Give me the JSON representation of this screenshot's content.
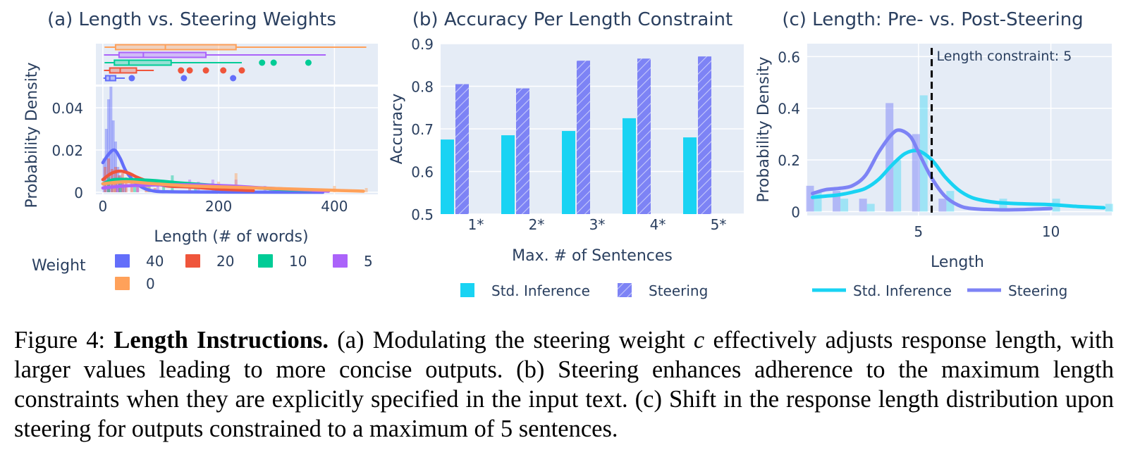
{
  "chart_data": [
    {
      "id": "a",
      "type": "histogram",
      "title": "(a) Length vs. Steering Weights",
      "xlabel": "Length (# of words)",
      "ylabel": "Probability Density",
      "xlim": [
        -12,
        475
      ],
      "ylim": [
        -0.001,
        0.05
      ],
      "xticks": [
        "0",
        "200",
        "400"
      ],
      "xtick_values": [
        0,
        200,
        400
      ],
      "yticks": [
        "0",
        "0.02",
        "0.04"
      ],
      "ytick_values": [
        0,
        0.02,
        0.04
      ],
      "legend_title": "Weight",
      "legend_position": "bottom",
      "series": [
        {
          "name": "40",
          "color": "#636efa",
          "box": {
            "min": 1,
            "q1": 5,
            "median": 12,
            "q3": 22,
            "max": 38,
            "outliers": [
              50,
              140,
              225
            ]
          },
          "hist": [
            [
              2,
              0.016
            ],
            [
              6,
              0.03
            ],
            [
              10,
              0.044
            ],
            [
              14,
              0.05
            ],
            [
              18,
              0.034
            ],
            [
              22,
              0.024
            ],
            [
              26,
              0.012
            ],
            [
              30,
              0.008
            ],
            [
              34,
              0.005
            ],
            [
              38,
              0.003
            ]
          ],
          "kde": [
            [
              0,
              0.014
            ],
            [
              10,
              0.018
            ],
            [
              20,
              0.02
            ],
            [
              30,
              0.016
            ],
            [
              40,
              0.01
            ],
            [
              55,
              0.005
            ],
            [
              70,
              0.002
            ],
            [
              90,
              0.0005
            ],
            [
              120,
              0.0002
            ],
            [
              200,
              0.0001
            ],
            [
              380,
              0
            ]
          ]
        },
        {
          "name": "20",
          "color": "#ef553b",
          "box": {
            "min": 2,
            "q1": 12,
            "median": 30,
            "q3": 58,
            "max": 88,
            "outliers": [
              135,
              150,
              178,
              208,
              240
            ]
          },
          "hist": [
            [
              4,
              0.012
            ],
            [
              10,
              0.016
            ],
            [
              16,
              0.011
            ],
            [
              22,
              0.012
            ],
            [
              28,
              0.008
            ],
            [
              34,
              0.009
            ],
            [
              40,
              0.007
            ],
            [
              50,
              0.005
            ],
            [
              60,
              0.004
            ],
            [
              75,
              0.003
            ],
            [
              90,
              0.002
            ]
          ],
          "kde": [
            [
              0,
              0.006
            ],
            [
              15,
              0.009
            ],
            [
              30,
              0.01
            ],
            [
              45,
              0.009
            ],
            [
              60,
              0.007
            ],
            [
              80,
              0.005
            ],
            [
              110,
              0.003
            ],
            [
              150,
              0.0025
            ],
            [
              200,
              0.0015
            ],
            [
              260,
              0.0008
            ]
          ]
        },
        {
          "name": "10",
          "color": "#00cc96",
          "box": {
            "min": 3,
            "q1": 20,
            "median": 45,
            "q3": 118,
            "max": 240,
            "outliers": [
              275,
              295,
              355
            ]
          },
          "hist": [
            [
              10,
              0.007
            ],
            [
              30,
              0.006
            ],
            [
              55,
              0.005
            ],
            [
              80,
              0.004
            ],
            [
              105,
              0.005
            ],
            [
              120,
              0.008
            ],
            [
              160,
              0.003
            ],
            [
              200,
              0.003
            ],
            [
              230,
              0.002
            ]
          ],
          "kde": [
            [
              0,
              0.004
            ],
            [
              20,
              0.006
            ],
            [
              50,
              0.006
            ],
            [
              90,
              0.0055
            ],
            [
              130,
              0.0045
            ],
            [
              180,
              0.0035
            ],
            [
              240,
              0.0025
            ],
            [
              300,
              0.0015
            ],
            [
              360,
              0.0008
            ]
          ]
        },
        {
          "name": "5",
          "color": "#ab63fa",
          "box": {
            "min": 2,
            "q1": 28,
            "median": 70,
            "q3": 178,
            "max": 385,
            "outliers": []
          },
          "hist": [
            [
              25,
              0.003
            ],
            [
              60,
              0.004
            ],
            [
              95,
              0.005
            ],
            [
              150,
              0.006
            ],
            [
              165,
              0.005
            ],
            [
              190,
              0.006
            ],
            [
              230,
              0.006
            ],
            [
              280,
              0.003
            ],
            [
              330,
              0.002
            ]
          ],
          "kde": [
            [
              0,
              0.002
            ],
            [
              40,
              0.003
            ],
            [
              100,
              0.0035
            ],
            [
              160,
              0.0035
            ],
            [
              220,
              0.003
            ],
            [
              280,
              0.002
            ],
            [
              340,
              0.0012
            ],
            [
              390,
              0.0005
            ]
          ]
        },
        {
          "name": "0",
          "color": "#ffa15a",
          "box": {
            "min": 3,
            "q1": 22,
            "median": 108,
            "q3": 230,
            "max": 455,
            "outliers": []
          },
          "hist": [
            [
              20,
              0.004
            ],
            [
              80,
              0.003
            ],
            [
              150,
              0.003
            ],
            [
              200,
              0.005
            ],
            [
              230,
              0.009
            ],
            [
              290,
              0.002
            ],
            [
              340,
              0.002
            ],
            [
              400,
              0.003
            ],
            [
              455,
              0.002
            ]
          ],
          "kde": [
            [
              0,
              0.004
            ],
            [
              40,
              0.005
            ],
            [
              90,
              0.004
            ],
            [
              150,
              0.003
            ],
            [
              210,
              0.0025
            ],
            [
              270,
              0.002
            ],
            [
              330,
              0.0015
            ],
            [
              390,
              0.001
            ],
            [
              450,
              0.0005
            ]
          ]
        }
      ]
    },
    {
      "id": "b",
      "type": "bar",
      "title": "(b) Accuracy Per Length Constraint",
      "xlabel": "Max. # of Sentences",
      "ylabel": "Accuracy",
      "categories": [
        "1*",
        "2*",
        "3*",
        "4*",
        "5*"
      ],
      "ylim": [
        0.5,
        0.9
      ],
      "yticks": [
        "0.5",
        "0.6",
        "0.7",
        "0.8",
        "0.9"
      ],
      "ytick_values": [
        0.5,
        0.6,
        0.7,
        0.8,
        0.9
      ],
      "legend_position": "bottom",
      "series": [
        {
          "name": "Std. Inference",
          "color": "#19d3f3",
          "pattern": "solid",
          "values": [
            0.675,
            0.685,
            0.695,
            0.725,
            0.68
          ]
        },
        {
          "name": "Steering",
          "color": "#7d83f5",
          "pattern": "hatched",
          "values": [
            0.805,
            0.795,
            0.86,
            0.865,
            0.87
          ]
        }
      ]
    },
    {
      "id": "c",
      "type": "line",
      "title": "(c) Length: Pre- vs. Post-Steering",
      "xlabel": "Length",
      "ylabel": "Probability Density",
      "xlim": [
        0.8,
        12.3
      ],
      "ylim": [
        -0.015,
        0.65
      ],
      "xticks": [
        "5",
        "10"
      ],
      "xtick_values": [
        5,
        10
      ],
      "yticks": [
        "0",
        "0.2",
        "0.4",
        "0.6"
      ],
      "ytick_values": [
        0,
        0.2,
        0.4,
        0.6
      ],
      "annotation": {
        "text": "Length constraint: 5",
        "x": 5.5
      },
      "legend_position": "bottom",
      "series": [
        {
          "name": "Std. Inference",
          "color": "#19d3f3",
          "bars": [
            [
              1,
              0.08
            ],
            [
              2,
              0.05
            ],
            [
              3,
              0.03
            ],
            [
              4,
              0.2
            ],
            [
              5,
              0.45
            ],
            [
              6,
              0.08
            ],
            [
              8,
              0.05
            ],
            [
              10,
              0.05
            ],
            [
              12,
              0.03
            ]
          ],
          "values": [
            [
              1,
              0.055
            ],
            [
              1.5,
              0.06
            ],
            [
              2,
              0.065
            ],
            [
              2.5,
              0.075
            ],
            [
              3,
              0.09
            ],
            [
              3.5,
              0.125
            ],
            [
              4,
              0.18
            ],
            [
              4.5,
              0.225
            ],
            [
              5,
              0.235
            ],
            [
              5.5,
              0.2
            ],
            [
              6,
              0.135
            ],
            [
              6.5,
              0.085
            ],
            [
              7,
              0.055
            ],
            [
              7.5,
              0.042
            ],
            [
              8,
              0.035
            ],
            [
              9,
              0.03
            ],
            [
              10,
              0.027
            ],
            [
              11,
              0.02
            ],
            [
              12,
              0.015
            ]
          ]
        },
        {
          "name": "Steering",
          "color": "#7d83f5",
          "bars": [
            [
              1,
              0.1
            ],
            [
              2,
              0.08
            ],
            [
              3,
              0.05
            ],
            [
              4,
              0.42
            ],
            [
              5,
              0.3
            ],
            [
              6,
              0.05
            ]
          ],
          "values": [
            [
              1,
              0.07
            ],
            [
              1.5,
              0.085
            ],
            [
              2,
              0.09
            ],
            [
              2.5,
              0.1
            ],
            [
              3,
              0.14
            ],
            [
              3.5,
              0.23
            ],
            [
              4,
              0.3
            ],
            [
              4.3,
              0.315
            ],
            [
              4.7,
              0.29
            ],
            [
              5,
              0.23
            ],
            [
              5.5,
              0.13
            ],
            [
              6,
              0.06
            ],
            [
              6.5,
              0.025
            ],
            [
              7,
              0.012
            ],
            [
              8,
              0.007
            ],
            [
              9,
              0.008
            ],
            [
              10,
              0.012
            ]
          ]
        }
      ]
    }
  ],
  "caption": {
    "label": "Figure 4:",
    "heading": "Length Instructions.",
    "text_1": "(a) Modulating the steering weight",
    "symbol": "c",
    "text_2": "effectively adjusts response length, with larger values leading to more concise outputs. (b) Steering enhances adherence to the maximum length constraints when they are explicitly specified in the input text. (c) Shift in the response length distribution upon steering for outputs constrained to a maximum of 5 sentences."
  }
}
